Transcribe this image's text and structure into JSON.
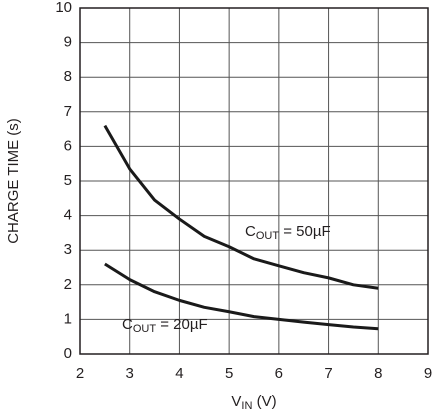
{
  "chart_data": {
    "type": "line",
    "ylabel": "CHARGE TIME (s)",
    "xlabel": {
      "main": "V",
      "sub": "IN",
      "tail": " (V)"
    },
    "x": [
      2.5,
      3,
      3.5,
      4,
      4.5,
      5,
      5.5,
      6,
      6.5,
      7,
      7.5,
      8
    ],
    "series": [
      {
        "label": {
          "main": "C",
          "sub": "OUT",
          "tail": " = 50µF"
        },
        "color": "#1a1a1a",
        "values": [
          6.6,
          5.35,
          4.45,
          3.9,
          3.4,
          3.1,
          2.75,
          2.55,
          2.35,
          2.2,
          2.0,
          1.9
        ]
      },
      {
        "label": {
          "main": "C",
          "sub": "OUT",
          "tail": " = 20µF"
        },
        "color": "#1a1a1a",
        "values": [
          2.6,
          2.15,
          1.8,
          1.55,
          1.35,
          1.22,
          1.08,
          1.0,
          0.92,
          0.85,
          0.78,
          0.73
        ]
      }
    ],
    "xlim": [
      2,
      9
    ],
    "xticks": [
      2,
      3,
      4,
      5,
      6,
      7,
      8,
      9
    ],
    "ylim": [
      0,
      10
    ],
    "yticks": [
      0,
      1,
      2,
      3,
      4,
      5,
      6,
      7,
      8,
      9,
      10
    ],
    "grid": true
  }
}
